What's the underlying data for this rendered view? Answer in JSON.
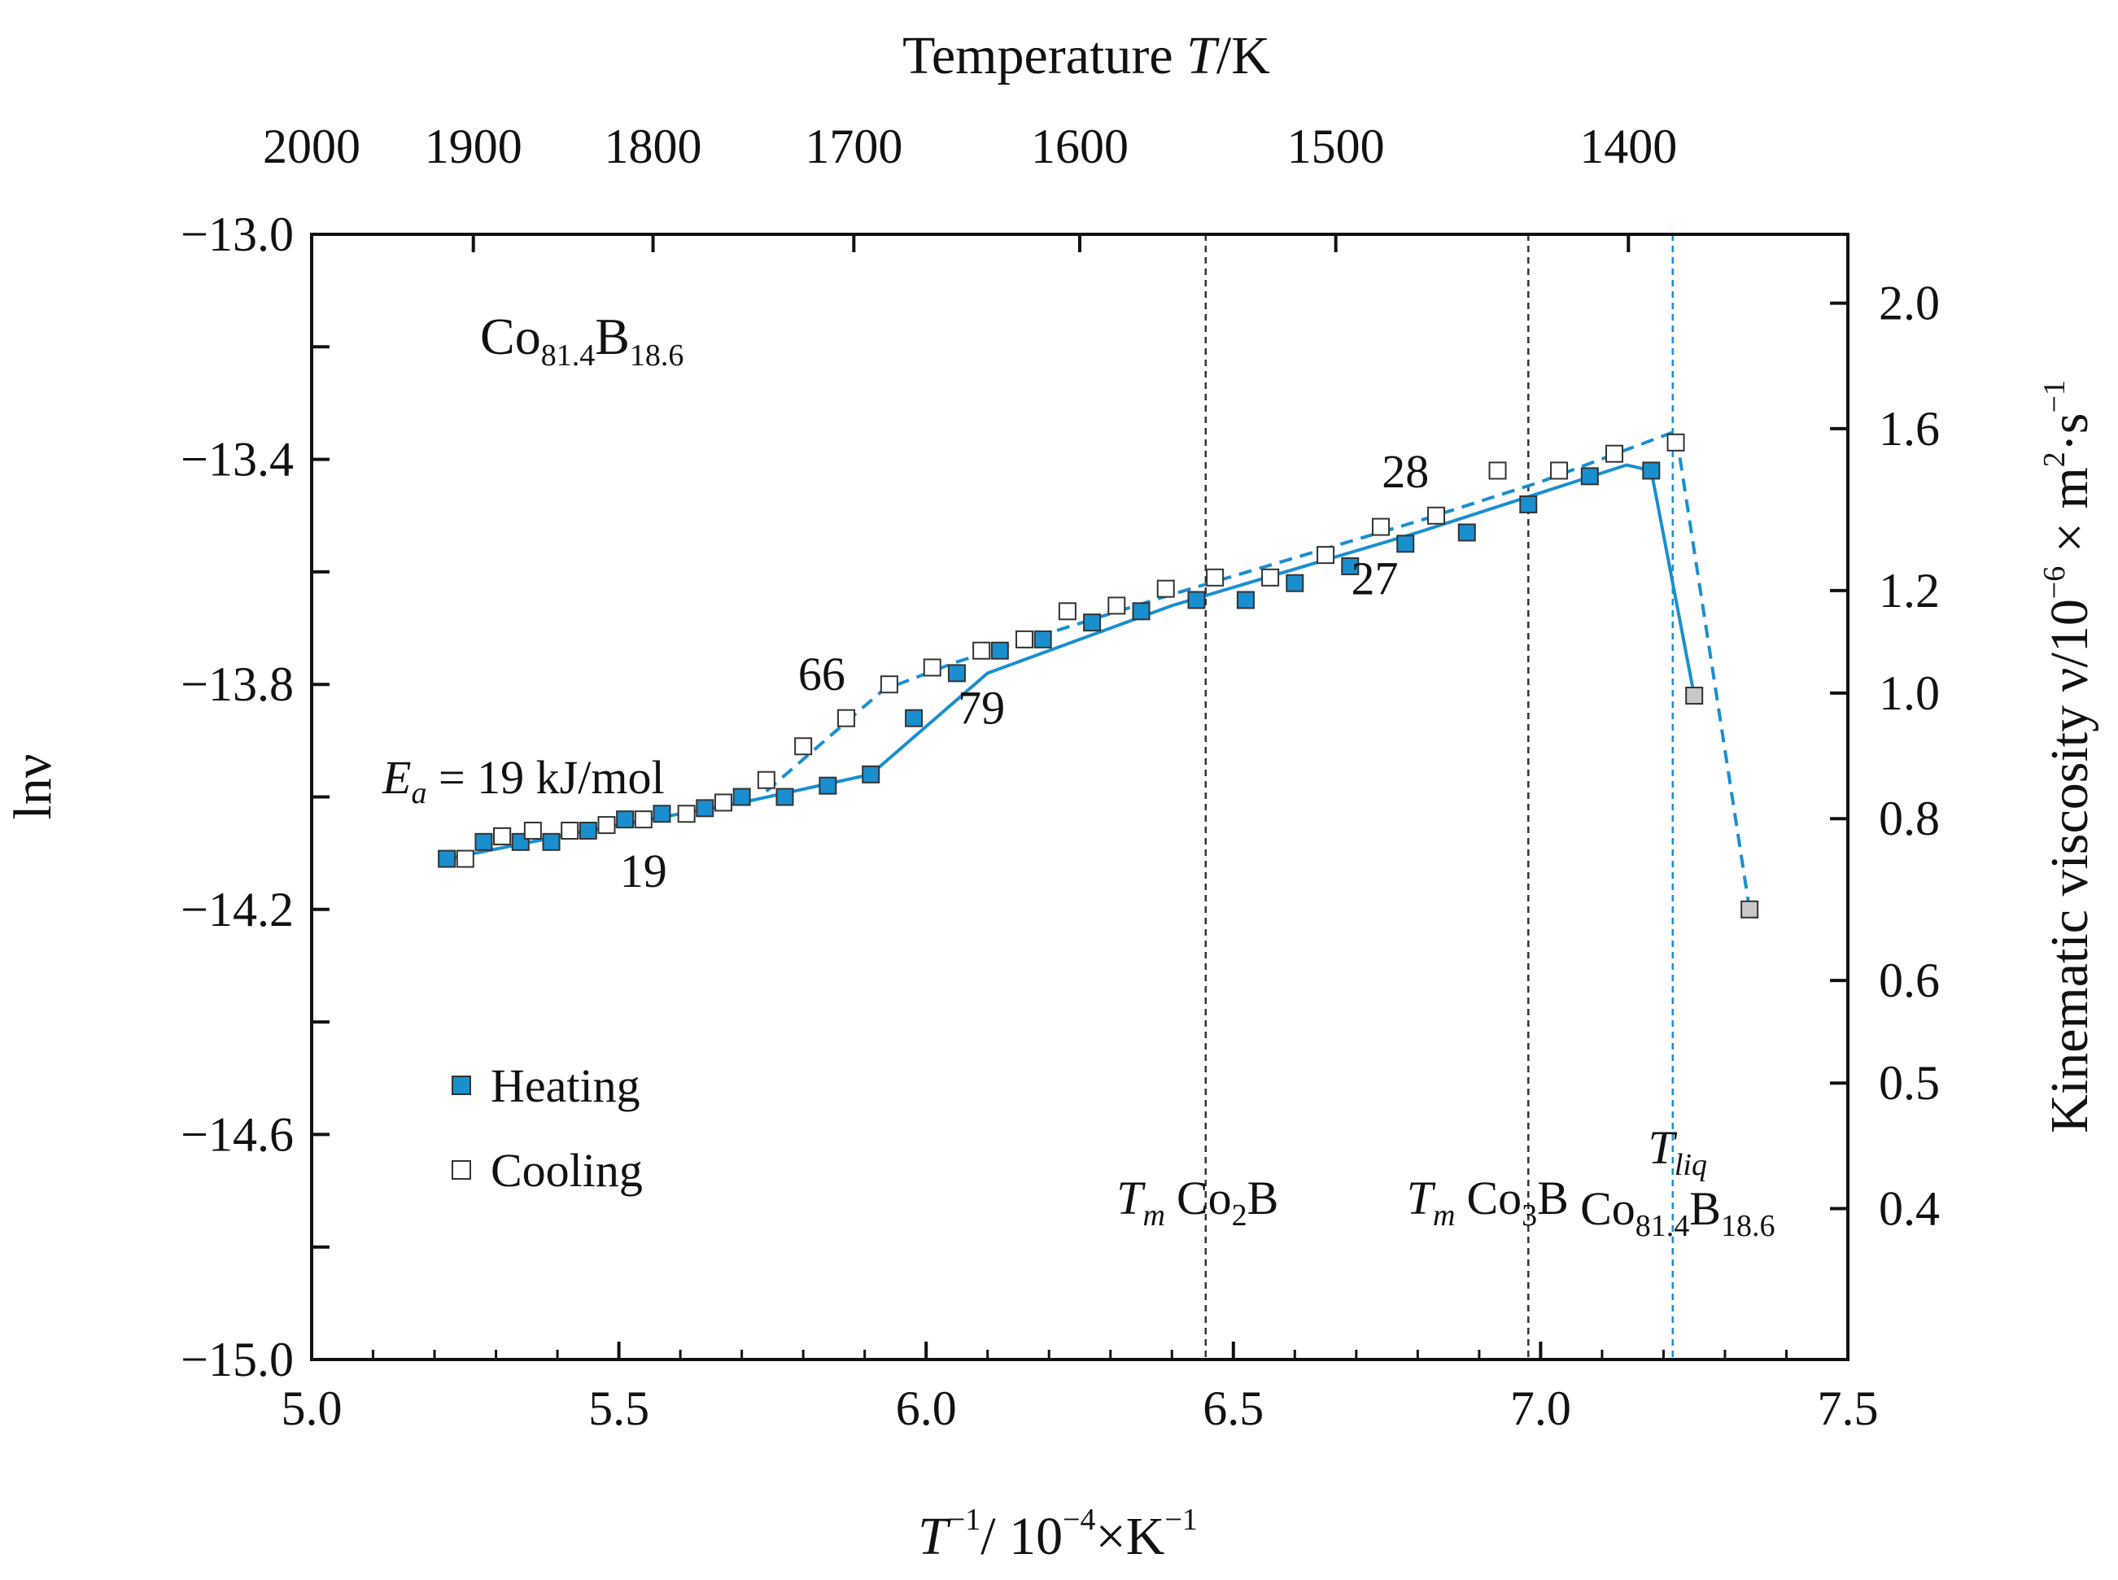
{
  "chart_data": {
    "type": "scatter",
    "title": "",
    "alloy_label": {
      "main1": "Co",
      "sub1": "81.4",
      "main2": "B",
      "sub2": "18.6"
    },
    "xlabel": {
      "base": "T",
      "sup1": "−1",
      "mid": "/ 10",
      "sup2": "−4",
      "tail": "×K",
      "sup3": "−1"
    },
    "ylabel": "lnν",
    "top_xlabel": {
      "pre": "Temperature ",
      "var": "T",
      "post": "/K"
    },
    "right_ylabel": {
      "pre": "Kinematic viscosity ν/10",
      "sup1": "−6",
      "mid": " × m",
      "sup2": "2",
      "mid2": "·s",
      "sup3": "−1"
    },
    "xlim": [
      5.0,
      7.5
    ],
    "ylim": [
      -15.0,
      -13.0
    ],
    "x_ticks": [
      5.0,
      5.5,
      6.0,
      6.5,
      7.0,
      7.5
    ],
    "x_tick_labels": [
      "5.0",
      "5.5",
      "6.0",
      "6.5",
      "7.0",
      "7.5"
    ],
    "y_ticks": [
      -15.0,
      -14.6,
      -14.2,
      -13.8,
      -13.4,
      -13.0
    ],
    "y_tick_labels": [
      "−15.0",
      "−14.6",
      "−14.2",
      "−13.8",
      "−13.4",
      "−13.0"
    ],
    "top_ticks": [
      2000,
      1900,
      1800,
      1700,
      1600,
      1500,
      1400
    ],
    "top_tick_labels": [
      "2000",
      "1900",
      "1800",
      "1700",
      "1600",
      "1500",
      "1400"
    ],
    "right_ticks": [
      0.4,
      0.5,
      0.6,
      0.8,
      1.0,
      1.2,
      1.6,
      2.0
    ],
    "right_tick_labels": [
      "0.4",
      "0.5",
      "0.6",
      "0.8",
      "1.0",
      "1.2",
      "1.6",
      "2.0"
    ],
    "series": [
      {
        "name": "Heating",
        "marker": "filled-square",
        "color": "#1a8fcf",
        "x": [
          5.22,
          5.28,
          5.31,
          5.34,
          5.39,
          5.45,
          5.51,
          5.57,
          5.64,
          5.7,
          5.77,
          5.84,
          5.91,
          5.98,
          6.05,
          6.12,
          6.19,
          6.27,
          6.35,
          6.44,
          6.52,
          6.6,
          6.69,
          6.78,
          6.88,
          6.98,
          7.08,
          7.18,
          7.25
        ],
        "y": [
          -14.11,
          -14.08,
          -14.07,
          -14.08,
          -14.08,
          -14.06,
          -14.04,
          -14.03,
          -14.02,
          -14.0,
          -14.0,
          -13.98,
          -13.96,
          -13.86,
          -13.78,
          -13.74,
          -13.72,
          -13.69,
          -13.67,
          -13.65,
          -13.65,
          -13.62,
          -13.59,
          -13.55,
          -13.53,
          -13.48,
          -13.43,
          -13.42,
          -13.82
        ]
      },
      {
        "name": "Cooling",
        "marker": "open-square",
        "color": "#1a8fcf",
        "x": [
          5.25,
          5.31,
          5.36,
          5.42,
          5.48,
          5.54,
          5.61,
          5.67,
          5.74,
          5.8,
          5.87,
          5.94,
          6.01,
          6.09,
          6.16,
          6.23,
          6.31,
          6.39,
          6.47,
          6.56,
          6.65,
          6.74,
          6.83,
          6.93,
          7.03,
          7.12,
          7.22,
          7.34
        ],
        "y": [
          -14.11,
          -14.07,
          -14.06,
          -14.06,
          -14.05,
          -14.04,
          -14.03,
          -14.01,
          -13.97,
          -13.91,
          -13.86,
          -13.8,
          -13.77,
          -13.74,
          -13.72,
          -13.67,
          -13.66,
          -13.63,
          -13.61,
          -13.61,
          -13.57,
          -13.52,
          -13.5,
          -13.42,
          -13.42,
          -13.39,
          -13.37,
          -14.2
        ]
      }
    ],
    "heating_fit_line": {
      "x": [
        5.22,
        5.45,
        5.7,
        5.91,
        6.1,
        6.4,
        6.8,
        7.14,
        7.18,
        7.25
      ],
      "y": [
        -14.11,
        -14.06,
        -14.01,
        -13.96,
        -13.78,
        -13.66,
        -13.53,
        -13.41,
        -13.42,
        -13.82
      ]
    },
    "cooling_fit_line": {
      "x": [
        5.74,
        5.93,
        6.05,
        6.4,
        6.8,
        7.0,
        7.22,
        7.34
      ],
      "y": [
        -13.99,
        -13.81,
        -13.76,
        -13.64,
        -13.51,
        -13.44,
        -13.35,
        -14.2
      ]
    },
    "slope_labels": [
      {
        "text": "19",
        "x": 5.54,
        "y": -14.16
      },
      {
        "text": "66",
        "x": 5.83,
        "y": -13.81
      },
      {
        "text": "79",
        "x": 6.09,
        "y": -13.87
      },
      {
        "text": "28",
        "x": 6.78,
        "y": -13.45
      },
      {
        "text": "27",
        "x": 6.73,
        "y": -13.64
      }
    ],
    "activation_energy": {
      "var": "E",
      "sub": "a",
      "text": " = 19 kJ/mol"
    },
    "vlines": [
      {
        "x": 6.455,
        "color": "#333333",
        "var": "T",
        "sub": "m",
        "name": "Co",
        "name_sub": "2",
        "name_tail": "B"
      },
      {
        "x": 6.98,
        "color": "#333333",
        "var": "T",
        "sub": "m",
        "name": "Co",
        "name_sub": "3",
        "name_tail": "B"
      },
      {
        "x": 7.215,
        "color": "#1a8fcf",
        "var": "T",
        "sub": "liq",
        "name": "Co",
        "name_sub": "81.4",
        "name_tail": "B",
        "name_sub2": "18.6"
      }
    ],
    "legend": {
      "position": "lower-left",
      "entries": [
        "Heating",
        "Cooling"
      ]
    }
  }
}
